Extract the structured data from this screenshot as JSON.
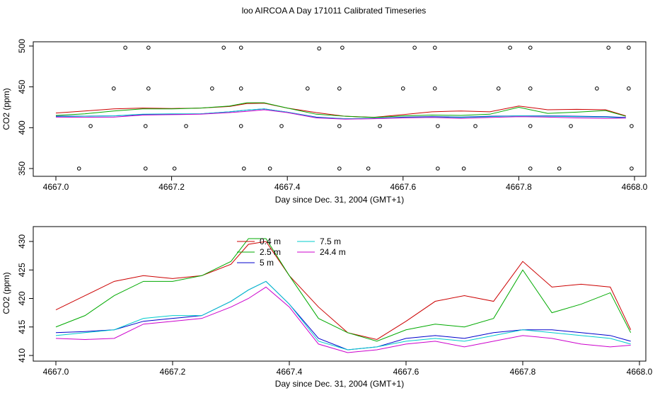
{
  "title": "loo AIRCOA A  Day 171011  Calibrated Timeseries",
  "chart_data": [
    {
      "type": "scatter",
      "xlabel": "Day since Dec. 31, 2004 (GMT+1)",
      "ylabel": "CO2 (ppm)",
      "xlim": [
        4667.0,
        4668.0
      ],
      "ylim": [
        350,
        500
      ],
      "x_ticks": [
        "4667.0",
        "4667.2",
        "4667.4",
        "4667.6",
        "4667.8",
        "4668.0"
      ],
      "y_ticks": [
        "350",
        "400",
        "450",
        "500"
      ],
      "flag_points": [
        {
          "x": 4667.04,
          "y": 350
        },
        {
          "x": 4667.06,
          "y": 402
        },
        {
          "x": 4667.1,
          "y": 448
        },
        {
          "x": 4667.12,
          "y": 498
        },
        {
          "x": 4667.155,
          "y": 350
        },
        {
          "x": 4667.155,
          "y": 402
        },
        {
          "x": 4667.16,
          "y": 448
        },
        {
          "x": 4667.16,
          "y": 498
        },
        {
          "x": 4667.205,
          "y": 350
        },
        {
          "x": 4667.225,
          "y": 402
        },
        {
          "x": 4667.27,
          "y": 448
        },
        {
          "x": 4667.29,
          "y": 498
        },
        {
          "x": 4667.32,
          "y": 498
        },
        {
          "x": 4667.32,
          "y": 448
        },
        {
          "x": 4667.32,
          "y": 402
        },
        {
          "x": 4667.325,
          "y": 350
        },
        {
          "x": 4667.37,
          "y": 350
        },
        {
          "x": 4667.39,
          "y": 402
        },
        {
          "x": 4667.435,
          "y": 448
        },
        {
          "x": 4667.455,
          "y": 497
        },
        {
          "x": 4667.49,
          "y": 350
        },
        {
          "x": 4667.49,
          "y": 402
        },
        {
          "x": 4667.49,
          "y": 448
        },
        {
          "x": 4667.495,
          "y": 498
        },
        {
          "x": 4667.54,
          "y": 350
        },
        {
          "x": 4667.56,
          "y": 402
        },
        {
          "x": 4667.6,
          "y": 448
        },
        {
          "x": 4667.62,
          "y": 498
        },
        {
          "x": 4667.655,
          "y": 498
        },
        {
          "x": 4667.655,
          "y": 448
        },
        {
          "x": 4667.66,
          "y": 402
        },
        {
          "x": 4667.66,
          "y": 350
        },
        {
          "x": 4667.705,
          "y": 350
        },
        {
          "x": 4667.725,
          "y": 402
        },
        {
          "x": 4667.765,
          "y": 448
        },
        {
          "x": 4667.785,
          "y": 498
        },
        {
          "x": 4667.82,
          "y": 498
        },
        {
          "x": 4667.82,
          "y": 448
        },
        {
          "x": 4667.82,
          "y": 402
        },
        {
          "x": 4667.82,
          "y": 350
        },
        {
          "x": 4667.87,
          "y": 350
        },
        {
          "x": 4667.89,
          "y": 402
        },
        {
          "x": 4667.935,
          "y": 448
        },
        {
          "x": 4667.955,
          "y": 498
        },
        {
          "x": 4667.99,
          "y": 498
        },
        {
          "x": 4667.99,
          "y": 448
        },
        {
          "x": 4667.995,
          "y": 402
        },
        {
          "x": 4667.995,
          "y": 350
        }
      ]
    },
    {
      "type": "line",
      "xlabel": "Day since Dec. 31, 2004 (GMT+1)",
      "ylabel": "CO2 (ppm)",
      "xlim": [
        4667.0,
        4668.0
      ],
      "ylim": [
        410,
        432
      ],
      "x_ticks": [
        "4667.0",
        "4667.2",
        "4667.4",
        "4667.6",
        "4667.8",
        "4668.0"
      ],
      "y_ticks": [
        "410",
        "415",
        "420",
        "425",
        "430"
      ],
      "legend": "top-center",
      "x": [
        4667.0,
        4667.05,
        4667.1,
        4667.15,
        4667.2,
        4667.25,
        4667.3,
        4667.33,
        4667.36,
        4667.4,
        4667.45,
        4667.5,
        4667.55,
        4667.6,
        4667.65,
        4667.7,
        4667.75,
        4667.8,
        4667.85,
        4667.9,
        4667.95,
        4667.985
      ],
      "series": [
        {
          "name": "0.4 m",
          "color": "#cc0000",
          "values": [
            418.0,
            420.5,
            423.0,
            424.0,
            423.5,
            424.0,
            426.0,
            429.5,
            430.0,
            424.0,
            418.5,
            414.0,
            412.8,
            416.0,
            419.5,
            420.5,
            419.5,
            426.5,
            422.0,
            422.5,
            422.0,
            414.5
          ]
        },
        {
          "name": "2.5 m",
          "color": "#00aa00",
          "values": [
            415.0,
            417.0,
            420.5,
            423.0,
            423.0,
            424.0,
            426.5,
            430.5,
            430.5,
            424.0,
            416.5,
            414.0,
            412.5,
            414.5,
            415.5,
            415.0,
            416.5,
            425.0,
            417.5,
            419.0,
            421.0,
            414.0
          ]
        },
        {
          "name": "5 m",
          "color": "#0000cc",
          "values": [
            414.0,
            414.2,
            414.5,
            416.0,
            416.5,
            417.0,
            419.5,
            421.5,
            423.0,
            419.0,
            413.0,
            411.0,
            411.5,
            413.0,
            413.5,
            413.0,
            414.0,
            414.5,
            414.5,
            414.0,
            413.5,
            412.5
          ]
        },
        {
          "name": "7.5 m",
          "color": "#00cccc",
          "values": [
            413.5,
            414.0,
            414.5,
            416.5,
            417.0,
            417.0,
            419.5,
            421.5,
            423.0,
            419.0,
            412.5,
            411.0,
            411.5,
            412.5,
            413.0,
            412.5,
            413.5,
            414.5,
            414.0,
            413.5,
            413.0,
            412.0
          ]
        },
        {
          "name": "24.4 m",
          "color": "#cc00cc",
          "values": [
            413.0,
            412.8,
            413.0,
            415.5,
            416.0,
            416.5,
            418.5,
            420.0,
            422.0,
            418.5,
            412.0,
            410.5,
            411.0,
            412.0,
            412.5,
            411.5,
            412.5,
            413.5,
            413.0,
            412.0,
            411.5,
            411.8
          ]
        }
      ]
    }
  ]
}
